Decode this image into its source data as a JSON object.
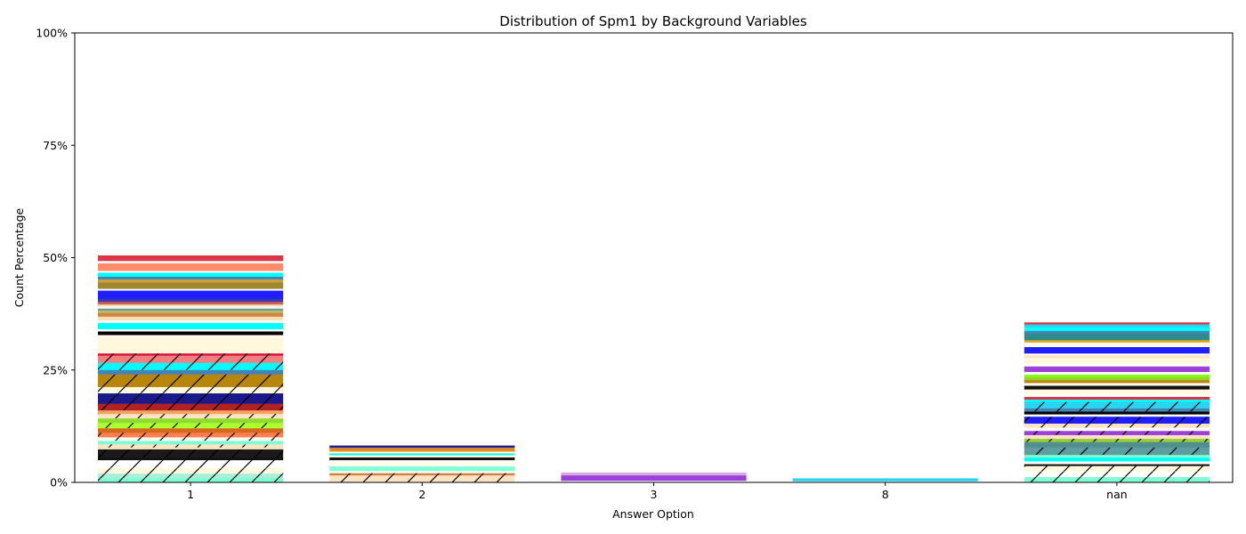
{
  "chart_data": {
    "type": "bar",
    "stacked": true,
    "title": "Distribution of Spm1 by Background Variables",
    "xlabel": "Answer Option",
    "ylabel": "Count Percentage",
    "categories": [
      "1",
      "2",
      "3",
      "8",
      "nan"
    ],
    "ylim": [
      0,
      100
    ],
    "yticks": [
      0,
      25,
      50,
      75,
      100
    ],
    "ytick_labels": [
      "0%",
      "25%",
      "50%",
      "75%",
      "100%"
    ],
    "grid": false,
    "legend": "none",
    "totals": [
      50.5,
      8.2,
      2.2,
      0.9,
      35.6
    ],
    "segments": [
      [
        {
          "v": 1.0,
          "c": "#7fffd4",
          "h": true
        },
        {
          "v": 1.0,
          "c": "#a8f0dc",
          "h": true
        },
        {
          "v": 1.2,
          "c": "#fff8dc",
          "h": true
        },
        {
          "v": 1.8,
          "c": "#ffffff",
          "h": true
        },
        {
          "v": 0.5,
          "c": "#111111",
          "h": false
        },
        {
          "v": 1.9,
          "c": "#1a1a1a",
          "h": true
        },
        {
          "v": 0.4,
          "c": "#f5deb3",
          "h": false
        },
        {
          "v": 0.7,
          "c": "#ffe4c4",
          "h": true
        },
        {
          "v": 0.8,
          "c": "#7fffd4",
          "h": false
        },
        {
          "v": 0.8,
          "c": "#fffaf0",
          "h": true
        },
        {
          "v": 1.0,
          "c": "#ff7f50",
          "h": true
        },
        {
          "v": 1.0,
          "c": "#d2691e",
          "h": false
        },
        {
          "v": 1.2,
          "c": "#adff2f",
          "h": true
        },
        {
          "v": 1.0,
          "c": "#8fdc2f",
          "h": false
        },
        {
          "v": 1.0,
          "c": "#ffe4c4",
          "h": true
        },
        {
          "v": 0.8,
          "c": "#f4a460",
          "h": false
        },
        {
          "v": 1.5,
          "c": "#b22222",
          "h": true
        },
        {
          "v": 2.3,
          "c": "#1a1a8c",
          "h": true
        },
        {
          "v": 1.4,
          "c": "#fff8dc",
          "h": true
        },
        {
          "v": 2.8,
          "c": "#b8860b",
          "h": true
        },
        {
          "v": 1.0,
          "c": "#4682b4",
          "h": false
        },
        {
          "v": 1.6,
          "c": "#00ffff",
          "h": true
        },
        {
          "v": 1.6,
          "c": "#f08080",
          "h": true
        },
        {
          "v": 0.5,
          "c": "#dc143c",
          "h": true
        },
        {
          "v": 3.5,
          "c": "#fff8dc",
          "h": false
        },
        {
          "v": 0.6,
          "c": "#fffaf0",
          "h": false
        },
        {
          "v": 0.8,
          "c": "#000000",
          "h": false
        },
        {
          "v": 0.5,
          "c": "#ffffff",
          "h": false
        },
        {
          "v": 1.4,
          "c": "#00ffff",
          "h": false
        },
        {
          "v": 0.6,
          "c": "#fffaf0",
          "h": false
        },
        {
          "v": 0.8,
          "c": "#f5deb3",
          "h": false
        },
        {
          "v": 0.8,
          "c": "#cd853f",
          "h": false
        },
        {
          "v": 0.6,
          "c": "#bdb76b",
          "h": false
        },
        {
          "v": 0.4,
          "c": "#5f9ea0",
          "h": false
        },
        {
          "v": 0.5,
          "c": "#fffaf0",
          "h": false
        },
        {
          "v": 0.4,
          "c": "#ffdead",
          "h": false
        },
        {
          "v": 0.6,
          "c": "#cd5c5c",
          "h": false
        },
        {
          "v": 0.7,
          "c": "#3a3aaa",
          "h": false
        },
        {
          "v": 1.8,
          "c": "#1e1eff",
          "h": false
        },
        {
          "v": 0.4,
          "c": "#ffffff",
          "h": false
        },
        {
          "v": 1.4,
          "c": "#a0882f",
          "h": false
        },
        {
          "v": 0.7,
          "c": "#c8a040",
          "h": false
        },
        {
          "v": 0.6,
          "c": "#4682b4",
          "h": false
        },
        {
          "v": 0.9,
          "c": "#00ffff",
          "h": false
        },
        {
          "v": 0.4,
          "c": "#ffffff",
          "h": false
        },
        {
          "v": 1.7,
          "c": "#ff8c69",
          "h": false
        },
        {
          "v": 0.5,
          "c": "#ffffff",
          "h": false
        },
        {
          "v": 1.2,
          "c": "#dc3545",
          "h": false
        }
      ],
      [
        {
          "v": 1.6,
          "c": "#ffe4c4",
          "h": true
        },
        {
          "v": 0.5,
          "c": "#cd853f",
          "h": true
        },
        {
          "v": 0.5,
          "c": "#ffffff",
          "h": false
        },
        {
          "v": 1.0,
          "c": "#7fffd4",
          "h": false
        },
        {
          "v": 1.4,
          "c": "#fffaf0",
          "h": false
        },
        {
          "v": 0.6,
          "c": "#111111",
          "h": false
        },
        {
          "v": 0.5,
          "c": "#fff8dc",
          "h": false
        },
        {
          "v": 0.4,
          "c": "#00ffff",
          "h": false
        },
        {
          "v": 0.4,
          "c": "#fffaf0",
          "h": false
        },
        {
          "v": 0.4,
          "c": "#ff8c00",
          "h": false
        },
        {
          "v": 0.5,
          "c": "#cd853f",
          "h": false
        },
        {
          "v": 0.4,
          "c": "#1a1a8c",
          "h": false
        }
      ],
      [
        {
          "v": 0.4,
          "c": "#ffffff",
          "h": false
        },
        {
          "v": 1.2,
          "c": "#9b40d8",
          "h": false
        },
        {
          "v": 0.6,
          "c": "#d8a8e0",
          "h": false
        }
      ],
      [
        {
          "v": 0.3,
          "c": "#ffffff",
          "h": false
        },
        {
          "v": 0.6,
          "c": "#29d4ef",
          "h": false
        }
      ],
      [
        {
          "v": 1.2,
          "c": "#7fffd4",
          "h": true
        },
        {
          "v": 1.2,
          "c": "#ffffff",
          "h": true
        },
        {
          "v": 1.2,
          "c": "#fff8dc",
          "h": true
        },
        {
          "v": 0.4,
          "c": "#111111",
          "h": false
        },
        {
          "v": 0.6,
          "c": "#ffffff",
          "h": false
        },
        {
          "v": 0.8,
          "c": "#00ffff",
          "h": false
        },
        {
          "v": 0.6,
          "c": "#7fffd4",
          "h": false
        },
        {
          "v": 1.6,
          "c": "#5f9ea0",
          "h": true
        },
        {
          "v": 1.2,
          "c": "#4f8f8f",
          "h": false
        },
        {
          "v": 0.7,
          "c": "#9acd32",
          "h": true
        },
        {
          "v": 0.8,
          "c": "#ffe4c4",
          "h": false
        },
        {
          "v": 0.9,
          "c": "#9b40d8",
          "h": true
        },
        {
          "v": 0.7,
          "c": "#ffffff",
          "h": false
        },
        {
          "v": 0.9,
          "c": "#ffe4c4",
          "h": true
        },
        {
          "v": 1.5,
          "c": "#1e1eff",
          "h": true
        },
        {
          "v": 0.5,
          "c": "#ffffff",
          "h": false
        },
        {
          "v": 0.6,
          "c": "#000000",
          "h": false
        },
        {
          "v": 0.7,
          "c": "#4682b4",
          "h": true
        },
        {
          "v": 1.4,
          "c": "#29d4ef",
          "h": true
        },
        {
          "v": 0.5,
          "c": "#00ffff",
          "h": false
        },
        {
          "v": 0.6,
          "c": "#dc3545",
          "h": false
        },
        {
          "v": 0.4,
          "c": "#ffffff",
          "h": false
        },
        {
          "v": 0.6,
          "c": "#fffaf0",
          "h": false
        },
        {
          "v": 0.6,
          "c": "#fff8dc",
          "h": false
        },
        {
          "v": 0.8,
          "c": "#111111",
          "h": false
        },
        {
          "v": 0.6,
          "c": "#fffaf0",
          "h": false
        },
        {
          "v": 0.6,
          "c": "#b8860b",
          "h": false
        },
        {
          "v": 0.6,
          "c": "#9acd32",
          "h": false
        },
        {
          "v": 0.6,
          "c": "#7fff00",
          "h": false
        },
        {
          "v": 0.6,
          "c": "#ffffff",
          "h": false
        },
        {
          "v": 1.2,
          "c": "#9b40d8",
          "h": false
        },
        {
          "v": 0.6,
          "c": "#ffffff",
          "h": false
        },
        {
          "v": 1.2,
          "c": "#fff8dc",
          "h": false
        },
        {
          "v": 0.6,
          "c": "#ffe4c4",
          "h": false
        },
        {
          "v": 0.4,
          "c": "#ffffff",
          "h": false
        },
        {
          "v": 1.4,
          "c": "#1e1eff",
          "h": false
        },
        {
          "v": 0.4,
          "c": "#ffffff",
          "h": false
        },
        {
          "v": 0.6,
          "c": "#fff8dc",
          "h": false
        },
        {
          "v": 0.5,
          "c": "#daa520",
          "h": false
        },
        {
          "v": 1.4,
          "c": "#2e8b8b",
          "h": false
        },
        {
          "v": 0.6,
          "c": "#4682b4",
          "h": false
        },
        {
          "v": 0.8,
          "c": "#00ffff",
          "h": false
        },
        {
          "v": 0.6,
          "c": "#29d4ef",
          "h": false
        },
        {
          "v": 0.4,
          "c": "#dc3545",
          "h": false
        }
      ]
    ]
  }
}
